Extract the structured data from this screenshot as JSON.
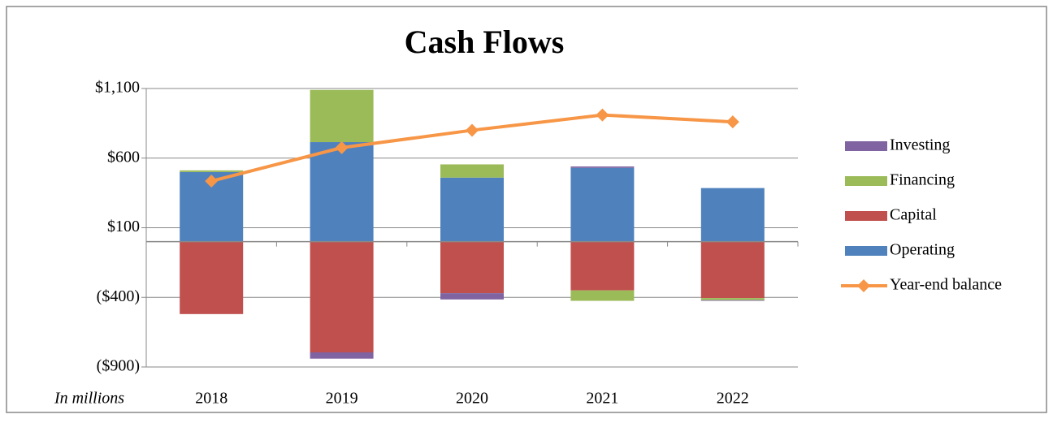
{
  "chart_data": {
    "type": "bar",
    "stacked": true,
    "title": "Cash Flows",
    "axis_note": "In millions",
    "categories": [
      "2018",
      "2019",
      "2020",
      "2021",
      "2022"
    ],
    "series": [
      {
        "name": "Operating",
        "color": "#4f81bd",
        "values": [
          500,
          715,
          460,
          530,
          385
        ]
      },
      {
        "name": "Capital",
        "color": "#c0504d",
        "values": [
          -520,
          -795,
          -370,
          -350,
          -405
        ]
      },
      {
        "name": "Financing",
        "color": "#9bbb59",
        "values": [
          12,
          375,
          95,
          -75,
          -15
        ]
      },
      {
        "name": "Investing",
        "color": "#8064a2",
        "values": [
          0,
          -45,
          -45,
          10,
          -5
        ]
      },
      {
        "name": "Year-end balance",
        "type": "line",
        "color": "#f79646",
        "values": [
          435,
          675,
          800,
          910,
          860
        ]
      }
    ],
    "legend_order": [
      3,
      2,
      1,
      0,
      4
    ],
    "ylim": [
      -900,
      1100
    ],
    "yticks": [
      {
        "value": -900,
        "label": "($900)"
      },
      {
        "value": -400,
        "label": "($400)"
      },
      {
        "value": 100,
        "label": "$100"
      },
      {
        "value": 600,
        "label": "$600"
      },
      {
        "value": 1100,
        "label": "$1,100"
      }
    ],
    "grid": true,
    "legend": "right"
  }
}
